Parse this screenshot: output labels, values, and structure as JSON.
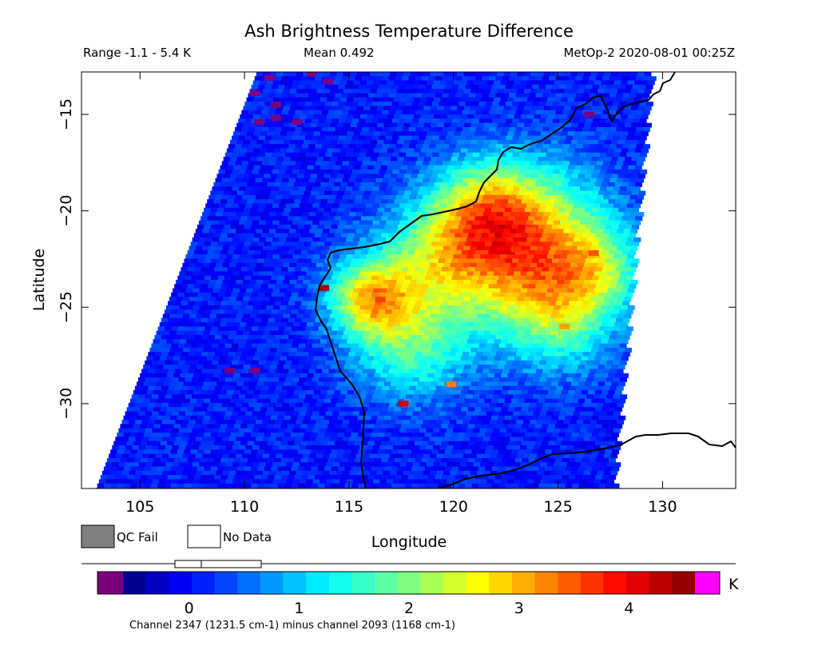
{
  "chart_data": {
    "type": "heatmap",
    "title": "Ash Brightness Temperature Difference",
    "info": {
      "range": "Range -1.1 - 5.4 K",
      "mean": "Mean 0.492",
      "satellite_time": "MetOp-2 2020-08-01 00:25Z"
    },
    "xlabel": "Longitude",
    "ylabel": "Latitude",
    "xlim": [
      102.2,
      133.5
    ],
    "ylim": [
      -34.4,
      -12.8
    ],
    "x_ticks": [
      105,
      110,
      115,
      120,
      125,
      130
    ],
    "y_ticks": [
      -15,
      -20,
      -25,
      -30
    ],
    "swath_edges": {
      "west": [
        [
          110.6,
          -12.8
        ],
        [
          102.9,
          -34.4
        ]
      ],
      "east": [
        [
          129.4,
          -12.8
        ],
        [
          127.6,
          -34.4
        ]
      ]
    },
    "grid": "off",
    "colorbar": {
      "unit": "K",
      "range": [
        -0.6,
        4.6
      ],
      "tick_values": [
        0,
        1,
        2,
        3,
        4
      ],
      "low_overflow_color": "#7b0080",
      "high_overflow_color": "#ff00ff",
      "qc_fail_color": "#808080",
      "no_data_color": "#ffffff"
    },
    "legend": {
      "qc_fail": "QC Fail",
      "no_data": "No Data"
    },
    "footnote": "Channel 2347 (1231.5 cm-1) minus channel 2093 (1168 cm-1)",
    "value_field": {
      "background_k": 0.1,
      "hotspots": [
        {
          "lon": 123.5,
          "lat": -21.5,
          "amp_k": 2.9,
          "sigma_deg": 2.6
        },
        {
          "lon": 119.5,
          "lat": -22.5,
          "amp_k": 1.8,
          "sigma_deg": 2.2
        },
        {
          "lon": 116.0,
          "lat": -24.5,
          "amp_k": 2.4,
          "sigma_deg": 1.4
        },
        {
          "lon": 118.0,
          "lat": -27.0,
          "amp_k": 1.5,
          "sigma_deg": 2.0
        },
        {
          "lon": 125.0,
          "lat": -25.5,
          "amp_k": 1.6,
          "sigma_deg": 2.0
        },
        {
          "lon": 121.5,
          "lat": -19.5,
          "amp_k": 1.2,
          "sigma_deg": 1.6
        },
        {
          "lon": 127.0,
          "lat": -23.0,
          "amp_k": 1.2,
          "sigma_deg": 1.5
        }
      ],
      "spots": [
        {
          "lon": 113.8,
          "lat": -24.0,
          "value_k": 4.4
        },
        {
          "lon": 117.6,
          "lat": -30.0,
          "value_k": 4.2
        },
        {
          "lon": 119.9,
          "lat": -29.0,
          "value_k": 3.3
        },
        {
          "lon": 123.0,
          "lat": -22.0,
          "value_k": 3.7
        },
        {
          "lon": 116.5,
          "lat": -24.6,
          "value_k": 3.6
        },
        {
          "lon": 123.7,
          "lat": -21.0,
          "value_k": 3.5
        },
        {
          "lon": 126.7,
          "lat": -22.2,
          "value_k": 3.5
        },
        {
          "lon": 125.3,
          "lat": -26.0,
          "value_k": 3.1
        },
        {
          "lon": 110.5,
          "lat": -28.3,
          "value_k": -0.85
        },
        {
          "lon": 109.3,
          "lat": -28.3,
          "value_k": -0.85
        },
        {
          "lon": 111.5,
          "lat": -14.5,
          "value_k": -0.85
        },
        {
          "lon": 111.5,
          "lat": -15.2,
          "value_k": -0.85
        },
        {
          "lon": 110.7,
          "lat": -15.4,
          "value_k": -0.85
        },
        {
          "lon": 112.5,
          "lat": -15.4,
          "value_k": -0.85
        },
        {
          "lon": 111.2,
          "lat": -13.1,
          "value_k": -0.85
        },
        {
          "lon": 110.5,
          "lat": -13.9,
          "value_k": -0.85
        },
        {
          "lon": 113.2,
          "lat": -12.9,
          "value_k": -0.85
        },
        {
          "lon": 114.0,
          "lat": -13.3,
          "value_k": -0.85
        },
        {
          "lon": 126.5,
          "lat": -15.0,
          "value_k": -0.85
        }
      ]
    }
  }
}
